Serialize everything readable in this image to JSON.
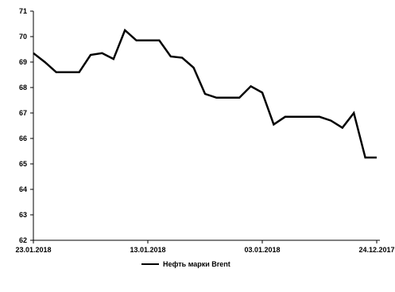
{
  "chart_data": {
    "type": "line",
    "x_labels": [
      "23.01.2018",
      "13.01.2018",
      "03.01.2018",
      "24.12.2017"
    ],
    "x": [
      "23.01.2018",
      "22.01.2018",
      "21.01.2018",
      "20.01.2018",
      "19.01.2018",
      "18.01.2018",
      "17.01.2018",
      "16.01.2018",
      "15.01.2018",
      "14.01.2018",
      "13.01.2018",
      "12.01.2018",
      "11.01.2018",
      "10.01.2018",
      "09.01.2018",
      "08.01.2018",
      "07.01.2018",
      "06.01.2018",
      "05.01.2018",
      "04.01.2018",
      "03.01.2018",
      "02.01.2018",
      "01.01.2018",
      "31.12.2017",
      "30.12.2017",
      "29.12.2017",
      "28.12.2017",
      "27.12.2017",
      "26.12.2017",
      "25.12.2017",
      "24.12.2017"
    ],
    "series": [
      {
        "name": "Нефть марки Brent",
        "color": "#000000",
        "values": [
          69.35,
          69.0,
          68.6,
          68.6,
          68.6,
          69.28,
          69.35,
          69.12,
          70.25,
          69.85,
          69.85,
          69.85,
          69.22,
          69.17,
          68.78,
          67.75,
          67.6,
          67.6,
          67.6,
          68.05,
          67.8,
          66.55,
          66.85,
          66.85,
          66.85,
          66.85,
          66.7,
          66.42,
          67.0,
          65.25,
          65.25
        ]
      }
    ],
    "ylim": [
      62,
      71
    ],
    "yticks": [
      "62",
      "63",
      "64",
      "65",
      "66",
      "67",
      "68",
      "69",
      "70",
      "71"
    ],
    "grid": false,
    "legend_position": "bottom"
  }
}
